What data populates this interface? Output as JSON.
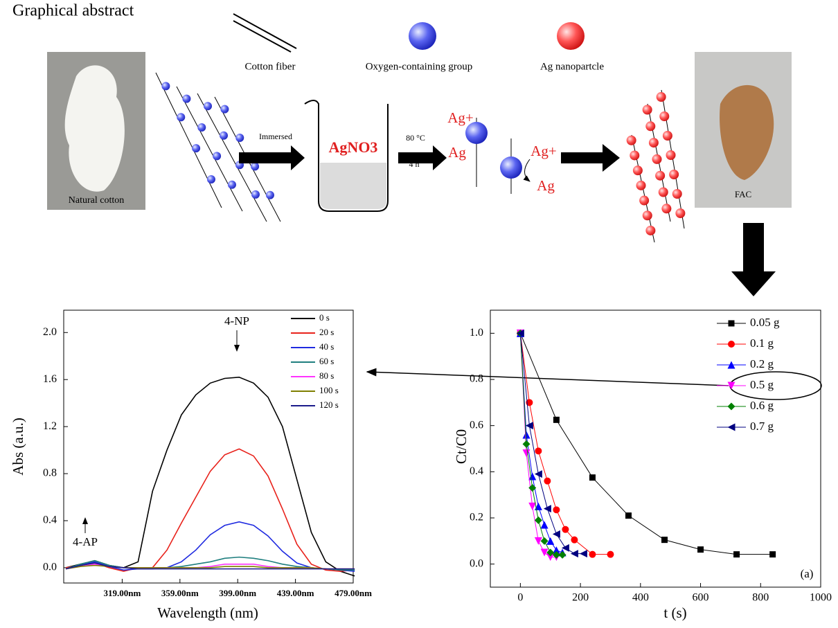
{
  "diagram": {
    "title": "Graphical abstract",
    "legend": [
      "Cotton fiber",
      "Oxygen-containing group",
      "Ag nanopartcle"
    ],
    "photo_left": "Natural cotton",
    "photo_right": "FAC",
    "step1": "Immersed",
    "beaker": "AgNO3",
    "cond1": "80 °C",
    "cond2": "4 h",
    "ion": "Ag+",
    "metal": "Ag"
  },
  "chart_data": [
    {
      "type": "line",
      "xlabel": "Wavelength (nm)",
      "ylabel": "Abs (a.u.)",
      "annotations": [
        "4-NP",
        "4-AP"
      ],
      "x": [
        280,
        290,
        300,
        310,
        320,
        330,
        340,
        350,
        360,
        370,
        380,
        390,
        400,
        410,
        420,
        430,
        440,
        450,
        460,
        470,
        480
      ],
      "xlim": [
        278.5,
        479
      ],
      "ylim": [
        -0.13,
        2.19
      ],
      "xticks": [
        {
          "value": 319,
          "label": "319.00nm"
        },
        {
          "value": 359,
          "label": "359.00nm"
        },
        {
          "value": 399,
          "label": "399.00nm"
        },
        {
          "value": 439,
          "label": "439.00nm"
        },
        {
          "value": 479,
          "label": "479.00nm"
        }
      ],
      "yticks": [
        {
          "value": 0,
          "label": "0.0"
        },
        0.4,
        0.8,
        1.2,
        1.6,
        {
          "value": 2,
          "label": "2.0"
        }
      ],
      "legend": "upper right",
      "grid": false,
      "series": [
        {
          "name": "0 s",
          "color": "#000000",
          "values": [
            0,
            0.03,
            0.06,
            0.02,
            0,
            0.05,
            0.65,
            1.0,
            1.3,
            1.47,
            1.57,
            1.61,
            1.62,
            1.57,
            1.45,
            1.2,
            0.75,
            0.3,
            0.05,
            -0.03,
            -0.07
          ]
        },
        {
          "name": "20 s",
          "color": "#e8211a",
          "values": [
            0,
            0.02,
            0.04,
            0,
            -0.03,
            0,
            0,
            0.15,
            0.38,
            0.6,
            0.82,
            0.96,
            1.01,
            0.95,
            0.78,
            0.5,
            0.2,
            0.03,
            -0.02,
            -0.03,
            -0.02
          ]
        },
        {
          "name": "40 s",
          "color": "#1f2ae0",
          "values": [
            -0.01,
            0.02,
            0.05,
            0.01,
            -0.02,
            -0.01,
            -0.01,
            0,
            0.05,
            0.15,
            0.28,
            0.36,
            0.39,
            0.36,
            0.27,
            0.14,
            0.04,
            0,
            -0.01,
            -0.02,
            -0.03
          ]
        },
        {
          "name": "60 s",
          "color": "#1f7f7f",
          "values": [
            -0.01,
            0.03,
            0.06,
            0.02,
            0,
            0,
            0,
            0,
            0.01,
            0.03,
            0.05,
            0.08,
            0.09,
            0.08,
            0.06,
            0.03,
            0.01,
            0,
            -0.01,
            -0.02,
            -0.02
          ]
        },
        {
          "name": "80 s",
          "color": "#ff33ff",
          "values": [
            -0.01,
            0.01,
            0.03,
            0.01,
            0,
            0,
            0,
            0,
            0,
            0,
            0.01,
            0.03,
            0.03,
            0.03,
            0.01,
            0,
            0,
            0,
            -0.01,
            -0.01,
            -0.01
          ]
        },
        {
          "name": "100 s",
          "color": "#7f7f00",
          "values": [
            -0.01,
            0.01,
            0.02,
            0.01,
            0,
            0,
            0,
            0,
            0,
            0,
            0,
            0.01,
            0.01,
            0.01,
            0,
            0,
            0,
            0,
            -0.01,
            -0.01,
            -0.01
          ]
        },
        {
          "name": "120 s",
          "color": "#1a1a8a",
          "values": [
            -0.01,
            0.02,
            0.04,
            0.01,
            0,
            -0.01,
            -0.01,
            -0.01,
            -0.01,
            -0.01,
            -0.01,
            -0.01,
            -0.01,
            -0.01,
            -0.01,
            -0.01,
            -0.01,
            -0.01,
            -0.01,
            -0.01,
            -0.01
          ]
        }
      ]
    },
    {
      "type": "line",
      "xlabel": "t (s)",
      "ylabel": "Ct/C0",
      "annotations": [
        "(a)"
      ],
      "xlim": [
        -100,
        1000
      ],
      "ylim": [
        -0.1,
        1.1
      ],
      "xticks": [
        0,
        200,
        400,
        600,
        800,
        1000
      ],
      "yticks": [
        {
          "value": 0,
          "label": "0.0"
        },
        0.2,
        0.4,
        0.6,
        0.8,
        {
          "value": 1,
          "label": "1.0"
        }
      ],
      "legend": "upper right",
      "grid": false,
      "series": [
        {
          "name": "0.05 g",
          "color": "#000000",
          "marker": "square",
          "x": [
            0,
            120,
            240,
            360,
            480,
            600,
            720,
            840
          ],
          "values": [
            1,
            0.625,
            0.375,
            0.21,
            0.105,
            0.063,
            0.042,
            0.042
          ]
        },
        {
          "name": "0.1 g",
          "color": "#ff0000",
          "marker": "circle",
          "x": [
            0,
            30,
            60,
            90,
            120,
            150,
            180,
            240,
            300
          ],
          "values": [
            1,
            0.7,
            0.49,
            0.36,
            0.235,
            0.15,
            0.105,
            0.042,
            0.042
          ]
        },
        {
          "name": "0.2 g",
          "color": "#0000ff",
          "marker": "triangle-up",
          "x": [
            0,
            20,
            40,
            60,
            80,
            100,
            120,
            140
          ],
          "values": [
            1,
            0.56,
            0.38,
            0.25,
            0.17,
            0.1,
            0.06,
            0.05
          ]
        },
        {
          "name": "0.5 g",
          "color": "#ff00ff",
          "marker": "triangle-down",
          "x": [
            0,
            20,
            40,
            60,
            80,
            100,
            120
          ],
          "values": [
            1,
            0.48,
            0.25,
            0.1,
            0.05,
            0.03,
            0.03
          ]
        },
        {
          "name": "0.6 g",
          "color": "#008000",
          "marker": "diamond",
          "x": [
            0,
            20,
            40,
            60,
            80,
            100,
            120,
            140
          ],
          "values": [
            1,
            0.52,
            0.33,
            0.19,
            0.1,
            0.05,
            0.04,
            0.04
          ]
        },
        {
          "name": "0.7 g",
          "color": "#000080",
          "marker": "triangle-left",
          "x": [
            0,
            30,
            60,
            90,
            120,
            150,
            180,
            210
          ],
          "values": [
            1,
            0.6,
            0.39,
            0.24,
            0.13,
            0.07,
            0.045,
            0.045
          ]
        }
      ]
    }
  ]
}
